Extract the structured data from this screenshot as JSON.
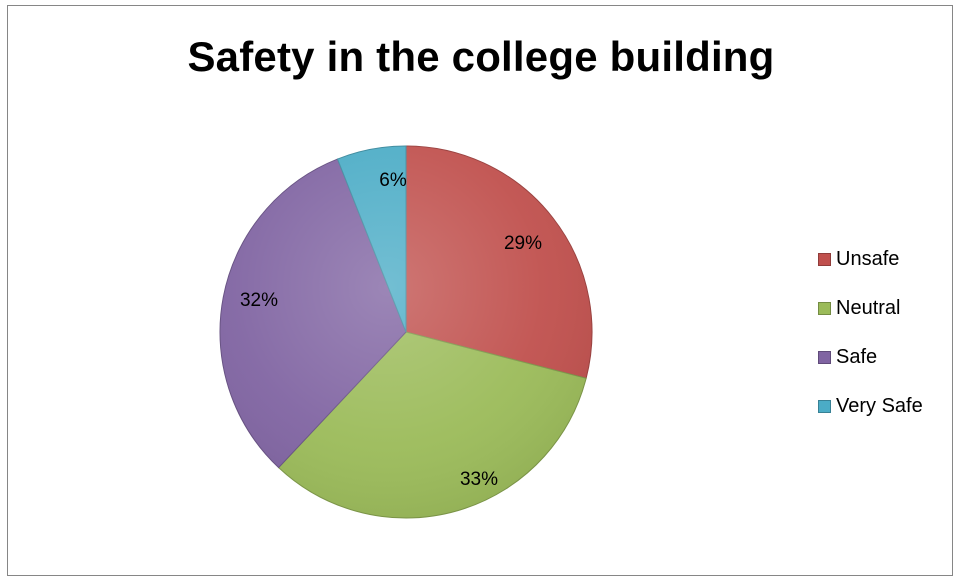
{
  "chart_data": {
    "type": "pie",
    "title": "Safety in the college building",
    "categories": [
      "Unsafe",
      "Neutral",
      "Safe",
      "Very Safe"
    ],
    "values": [
      29,
      33,
      32,
      6
    ],
    "value_labels": [
      "29%",
      "33%",
      "32%",
      "6%"
    ],
    "colors": [
      "#C0504D",
      "#9BBB59",
      "#8064A2",
      "#4BACC6"
    ],
    "legend_position": "right",
    "start_angle": "12 o'clock, clockwise"
  },
  "legend": [
    {
      "label": "Unsafe",
      "color": "#C0504D"
    },
    {
      "label": "Neutral",
      "color": "#9BBB59"
    },
    {
      "label": "Safe",
      "color": "#8064A2"
    },
    {
      "label": "Very Safe",
      "color": "#4BACC6"
    }
  ]
}
